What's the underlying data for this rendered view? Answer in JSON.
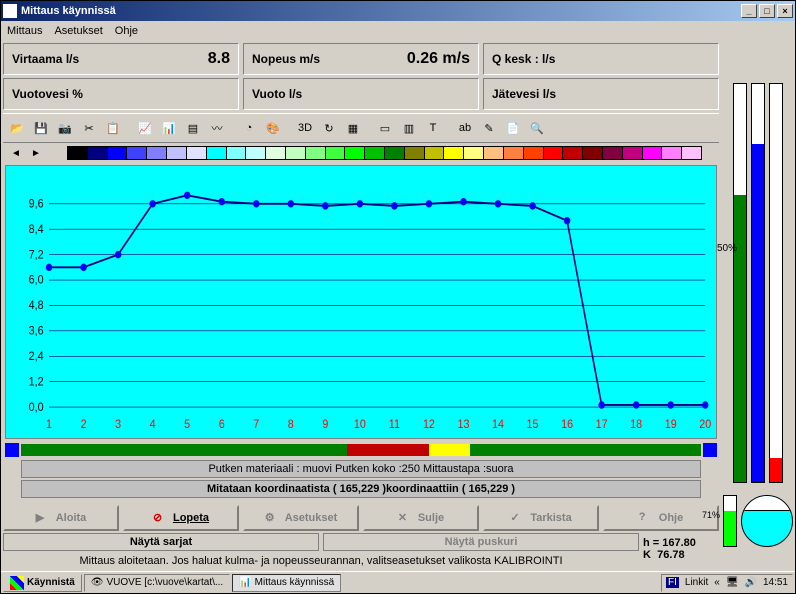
{
  "title": "Mittaus käynnissä",
  "menu": {
    "m1": "Mittaus",
    "m2": "Asetukset",
    "m3": "Ohje"
  },
  "info": {
    "r1c1_label": "Virtaama l/s",
    "r1c1_value": "8.8",
    "r1c2_label": "Nopeus m/s",
    "r1c2_value": "0.26 m/s",
    "r1c3_label": "Q kesk : l/s",
    "r1c3_value": "",
    "r2c1_label": "Vuotovesi %",
    "r2c1_value": "",
    "r2c2_label": "Vuoto l/s",
    "r2c2_value": "",
    "r2c3_label": "Jätevesi l/s",
    "r2c3_value": ""
  },
  "palette": [
    "#000000",
    "#000080",
    "#0000ff",
    "#4040ff",
    "#8080ff",
    "#c0c0ff",
    "#e0e0ff",
    "#00ffff",
    "#80ffff",
    "#c0ffff",
    "#e0ffe0",
    "#c0ffc0",
    "#80ff80",
    "#40ff40",
    "#00ff00",
    "#00c000",
    "#008000",
    "#808000",
    "#c0c000",
    "#ffff00",
    "#ffff80",
    "#ffc080",
    "#ff8040",
    "#ff4000",
    "#ff0000",
    "#c00000",
    "#800000",
    "#800040",
    "#c00080",
    "#ff00ff",
    "#ff80ff",
    "#ffc0ff"
  ],
  "chart": {
    "type": "line",
    "bg": "#00ffff",
    "line_color": "#000080",
    "marker_color": "#0000ff",
    "grid_color": "#000080",
    "axis_label_color": "#ff0000",
    "y_ticks": [
      0.0,
      1.2,
      2.4,
      3.6,
      4.8,
      6.0,
      7.2,
      8.4,
      9.6
    ],
    "x_ticks": [
      1,
      2,
      3,
      4,
      5,
      6,
      7,
      8,
      9,
      10,
      11,
      12,
      13,
      14,
      15,
      16,
      17,
      18,
      19,
      20
    ],
    "series": [
      6.6,
      6.6,
      7.2,
      9.6,
      10.0,
      9.7,
      9.6,
      9.6,
      9.5,
      9.6,
      9.5,
      9.6,
      9.7,
      9.6,
      9.5,
      8.8,
      0.1,
      0.1,
      0.1,
      0.1
    ]
  },
  "status_strip": [
    {
      "color": "#008000",
      "w": 48
    },
    {
      "color": "#c00000",
      "w": 12
    },
    {
      "color": "#ffff00",
      "w": 6
    },
    {
      "color": "#008000",
      "w": 34
    }
  ],
  "status1": "Putken materiaali : muovi Putken koko :250 Mittaustapa :suora",
  "status2": "Mitataan koordinaatista ( 165,229 )koordinaattiin ( 165,229 )",
  "buttons": {
    "b1": "Aloita",
    "b2": "Lopeta",
    "b3": "Asetukset",
    "b4": "Sulje",
    "b5": "Tarkista",
    "b6": "Ohje",
    "sb1": "Näytä sarjat",
    "sb2": "Näytä puskuri"
  },
  "message": "Mittaus aloitetaan. Jos haluat kulma- ja nopeusseurannan, valitseasetukset valikosta KALIBROINTI",
  "hk": {
    "h_label": "h =",
    "h_val": "167.80",
    "k_label": "K",
    "k_val": "76.78"
  },
  "vbars": {
    "pct50": "50%",
    "bar1_fill": 72,
    "bar1_color": "#008000",
    "bar2_fill": 85,
    "bar2_color": "#0000ff",
    "bar3_fill": 6,
    "bar3_color": "#ff0000",
    "small_pct": "71%",
    "small_fill": 71,
    "small_color": "#00ff00"
  },
  "taskbar": {
    "start": "Käynnistä",
    "t1": "VUOVE [c:\\vuove\\kartat\\...",
    "t2": "Mittaus käynnissä",
    "lang": "FI",
    "links": "Linkit",
    "time": "14:51"
  }
}
